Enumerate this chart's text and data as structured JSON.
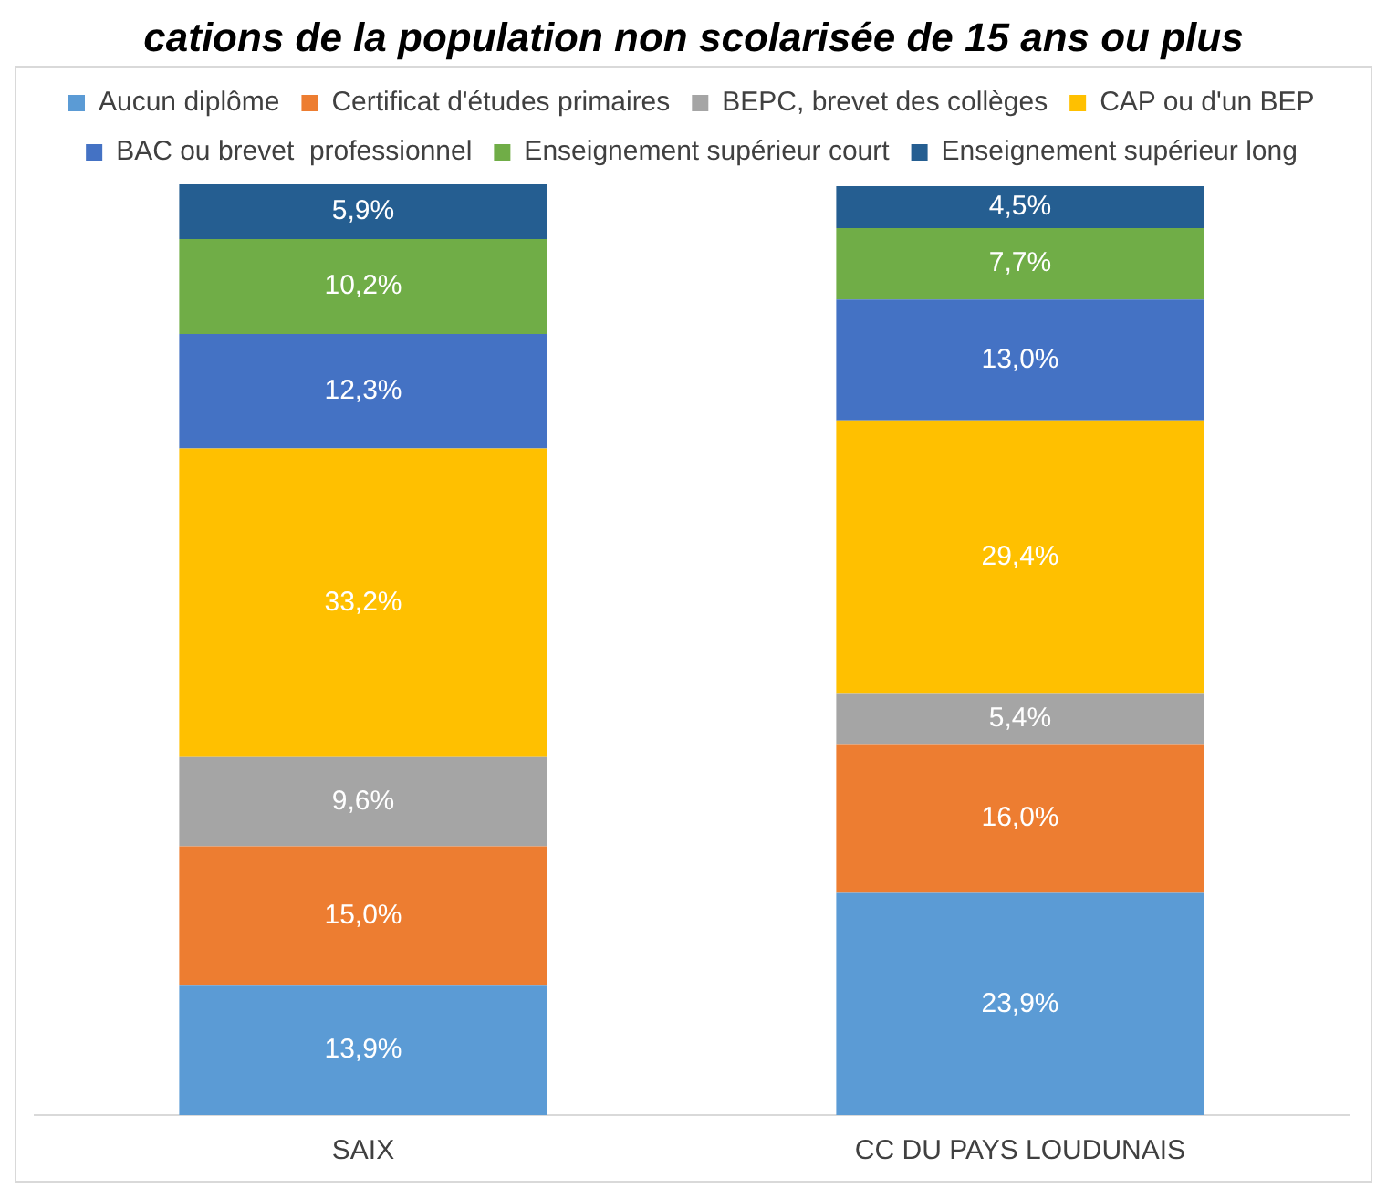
{
  "chart_data": {
    "type": "bar",
    "title": "cations de la population non scolarisée de 15 ans ou plus",
    "stacked": true,
    "legend": "top",
    "categories": [
      "SAIX",
      "CC DU PAYS LOUDUNAIS"
    ],
    "series": [
      {
        "name": "Aucun diplôme",
        "color": "#5b9bd5",
        "values": [
          13.9,
          23.9
        ],
        "value_labels": [
          "13,9%",
          "23,9%"
        ]
      },
      {
        "name": "Certificat d'études primaires",
        "color": "#ed7d31",
        "values": [
          15.0,
          16.0
        ],
        "value_labels": [
          "15,0%",
          "16,0%"
        ]
      },
      {
        "name": "BEPC, brevet des collèges",
        "color": "#a5a5a5",
        "values": [
          9.6,
          5.4
        ],
        "value_labels": [
          "9,6%",
          "5,4%"
        ]
      },
      {
        "name": "CAP ou d'un BEP",
        "color": "#ffc000",
        "values": [
          33.2,
          29.4
        ],
        "value_labels": [
          "33,2%",
          "29,4%"
        ]
      },
      {
        "name": "BAC ou brevet  professionnel",
        "color": "#4472c4",
        "values": [
          12.3,
          13.0
        ],
        "value_labels": [
          "12,3%",
          "13,0%"
        ]
      },
      {
        "name": "Enseignement supérieur court",
        "color": "#70ad47",
        "values": [
          10.2,
          7.7
        ],
        "value_labels": [
          "10,2%",
          "7,7%"
        ]
      },
      {
        "name": "Enseignement supérieur long",
        "color": "#255e91",
        "values": [
          5.9,
          4.5
        ],
        "value_labels": [
          "5,9%",
          "4,5%"
        ]
      }
    ]
  }
}
